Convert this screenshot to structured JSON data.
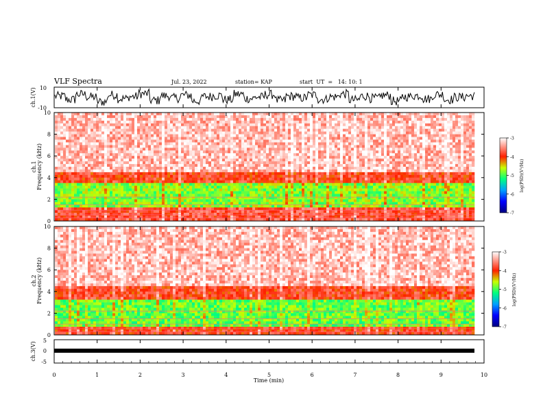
{
  "header": {
    "title": "VLF Spectra",
    "date": "Jul. 23, 2022",
    "station": "station= KAP",
    "start": "start  UT  =   14: 10: 1"
  },
  "chart_data": [
    {
      "type": "line",
      "ylabel": "ch.1(V)",
      "ylim": [
        -10,
        10
      ],
      "yticks": [
        "10",
        "-10"
      ],
      "xlim": [
        0,
        10
      ],
      "description_series": "ch.1 waveform",
      "series": [
        {
          "values": [
            1.2,
            -2.1,
            3.0,
            0.4,
            -4.2,
            2.5,
            -1.1,
            0.8,
            3.6,
            -2.9,
            1.5,
            -0.6,
            2.2,
            -3.4,
            0.9,
            1.9,
            -2.2,
            3.1,
            -1.0,
            0.3,
            2.8,
            -3.0,
            1.1,
            -0.5,
            2.4,
            -1.8,
            0.6,
            3.3,
            -2.5,
            1.4,
            -0.8,
            2.0,
            -3.6,
            0.7,
            1.8,
            -1.4,
            2.9,
            -2.0,
            0.2,
            1.6
          ]
        }
      ]
    },
    {
      "type": "heatmap",
      "ylabel": "ch.1\nFrequency (kHz)",
      "ylim": [
        0,
        10
      ],
      "yticks": [
        "0",
        "2",
        "4",
        "6",
        "8",
        "10"
      ],
      "xlim": [
        0,
        9.8
      ],
      "bands": [
        {
          "y0": 0,
          "y1": 1.2,
          "level": -3.8
        },
        {
          "y0": 1.2,
          "y1": 3.4,
          "level": -4.8
        },
        {
          "y0": 3.4,
          "y1": 4.6,
          "level": -3.9
        },
        {
          "y0": 4.6,
          "y1": 10,
          "level": -3.3
        }
      ],
      "colorbar": {
        "label": "log(PSD)(V²/Hz)",
        "min": -7,
        "max": -3,
        "ticks": [
          "-3",
          "-4",
          "-5",
          "-6",
          "-7"
        ]
      }
    },
    {
      "type": "heatmap",
      "ylabel": "ch.2\nFrequency (kHz)",
      "ylim": [
        0,
        10
      ],
      "yticks": [
        "0",
        "2",
        "4",
        "6",
        "8",
        "10"
      ],
      "xlim": [
        0,
        9.8
      ],
      "bands": [
        {
          "y0": 0,
          "y1": 0.8,
          "level": -3.9
        },
        {
          "y0": 0.8,
          "y1": 3.2,
          "level": -4.9
        },
        {
          "y0": 3.2,
          "y1": 4.6,
          "level": -3.9
        },
        {
          "y0": 4.6,
          "y1": 10,
          "level": -3.3
        }
      ],
      "colorbar": {
        "label": "log(PSD)(V²/Hz)",
        "min": -7,
        "max": -3,
        "ticks": [
          "-3",
          "-4",
          "-5",
          "-6",
          "-7"
        ]
      }
    },
    {
      "type": "line",
      "ylabel": "ch.3(V)",
      "ylim": [
        -5,
        5
      ],
      "yticks": [
        "5",
        "0",
        "-5"
      ],
      "xlim": [
        0,
        10
      ],
      "xlabel": "Time (min)",
      "xticks": [
        "0",
        "1",
        "2",
        "3",
        "4",
        "5",
        "6",
        "7",
        "8",
        "9",
        "10"
      ],
      "series": [
        {
          "values": [
            0.0,
            0.0
          ]
        }
      ]
    }
  ]
}
